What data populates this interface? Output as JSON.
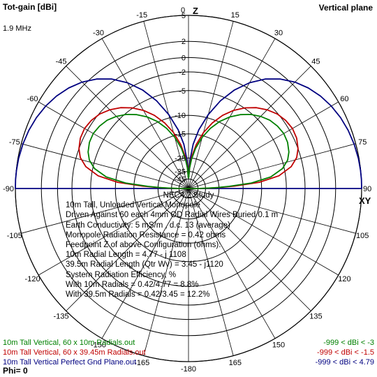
{
  "header": {
    "left_title": "Tot-gain [dBi]",
    "right_title": "Vertical plane",
    "frequency": "1.9 MHz",
    "axis_top": "Z",
    "axis_right": "XY",
    "phi": "Phi= 0"
  },
  "chart_data": {
    "type": "polar",
    "angle_labels": [
      {
        "text": "0",
        "deg": 0
      },
      {
        "text": "15",
        "deg": 15
      },
      {
        "text": "30",
        "deg": 30
      },
      {
        "text": "45",
        "deg": 45
      },
      {
        "text": "60",
        "deg": 60
      },
      {
        "text": "75",
        "deg": 75
      },
      {
        "text": "90",
        "deg": 90
      },
      {
        "text": "105",
        "deg": 105
      },
      {
        "text": "120",
        "deg": 120
      },
      {
        "text": "135",
        "deg": 135
      },
      {
        "text": "150",
        "deg": 150
      },
      {
        "text": "165",
        "deg": 165
      },
      {
        "text": "-180",
        "deg": 180
      },
      {
        "text": "-165",
        "deg": 195
      },
      {
        "text": "-150",
        "deg": 210
      },
      {
        "text": "-135",
        "deg": 225
      },
      {
        "text": "-120",
        "deg": 240
      },
      {
        "text": "-105",
        "deg": 255
      },
      {
        "text": "-90",
        "deg": 270
      },
      {
        "text": "-75",
        "deg": 285
      },
      {
        "text": "-60",
        "deg": 300
      },
      {
        "text": "-45",
        "deg": 315
      },
      {
        "text": "-30",
        "deg": 330
      },
      {
        "text": "-15",
        "deg": 345
      }
    ],
    "radial_ticks": [
      {
        "text": "5",
        "value": 5
      },
      {
        "text": "2",
        "value": 2
      },
      {
        "text": "0",
        "value": 0
      },
      {
        "text": "-2",
        "value": -2
      },
      {
        "text": "-5",
        "value": -5
      },
      {
        "text": "-10",
        "value": -10
      },
      {
        "text": "-15",
        "value": -15
      },
      {
        "text": "-25",
        "value": -25
      },
      {
        "text": "-35",
        "value": -35
      },
      {
        "text": "-45",
        "value": -45
      }
    ],
    "series": [
      {
        "name": "10m Tall Vertical Perfect Gnd Plane.out",
        "color": "#000080",
        "max_gain": 4.79,
        "elevation_deg": [
          0,
          3,
          6,
          10,
          15,
          20,
          25,
          30,
          35,
          40,
          45,
          50,
          55,
          60,
          65,
          70,
          75,
          80,
          84,
          87,
          89
        ],
        "gain_dbi": [
          4.79,
          4.79,
          4.77,
          4.73,
          4.62,
          4.47,
          4.25,
          3.95,
          3.56,
          3.04,
          2.38,
          1.5,
          0.35,
          -1.2,
          -3.2,
          -5.8,
          -9.2,
          -13.5,
          -18.5,
          -26,
          -40
        ]
      },
      {
        "name": "10m Tall Vertical, 60 x 39.45m Radials.out",
        "color": "#c00000",
        "max_gain": -1.5,
        "elevation_deg": [
          0,
          1,
          2,
          3,
          5,
          8,
          12,
          16,
          20,
          25,
          30,
          35,
          40,
          45,
          50,
          55,
          60,
          65,
          70,
          75,
          80,
          84,
          87,
          89
        ],
        "gain_dbi": [
          -45,
          -32,
          -24,
          -18,
          -10.5,
          -6.2,
          -3.8,
          -2.6,
          -2.0,
          -1.6,
          -1.5,
          -1.7,
          -2.1,
          -2.8,
          -3.7,
          -4.9,
          -6.4,
          -8.3,
          -10.8,
          -14,
          -18.5,
          -24,
          -31,
          -42
        ]
      },
      {
        "name": "10m Tall Vertical, 60 x 10m Radials.out",
        "color": "#008000",
        "max_gain": -3,
        "elevation_deg": [
          0,
          1,
          2,
          3,
          5,
          8,
          12,
          16,
          20,
          25,
          30,
          35,
          40,
          45,
          50,
          55,
          60,
          65,
          70,
          75,
          80,
          84,
          87,
          89
        ],
        "gain_dbi": [
          -45,
          -34,
          -26,
          -20,
          -12.5,
          -7.8,
          -5.3,
          -4.1,
          -3.5,
          -3.1,
          -3.0,
          -3.2,
          -3.6,
          -4.3,
          -5.2,
          -6.4,
          -7.9,
          -9.8,
          -12.3,
          -15.5,
          -20,
          -25.5,
          -32,
          -43
        ]
      }
    ]
  },
  "study": {
    "title": "NEC4.2 Study",
    "lines": [
      "10m Tall, Unloaded Vertical Monopole",
      "Driven Against 60 each 4mm OD Radial Wires Buried 0.1 m",
      "Earth Conductivity: 5 mS/m , d.c. 13 (average)",
      "Monopole Radiation Resistance = 0.42 ohms",
      "Feedpoint Z of above Configuration (ohms):",
      "10m Radial Length = 4.77 - j 1108",
      "39.5m Radial Length (Qtr Wv) = 3.45 - j1120",
      "System Radiation Efficiency, %",
      "With 10m Radials = 0.42/4.77 = 8.8%",
      "With 39.5m Radials = 0.42/3.45 = 12.2%"
    ]
  },
  "legend": {
    "items": [
      {
        "file": "10m Tall Vertical, 60 x 10m Radials.out",
        "range": "-999 < dBi < -3",
        "color": "#008000"
      },
      {
        "file": "10m Tall Vertical, 60 x 39.45m Radials.out",
        "range": "-999 < dBi < -1.5",
        "color": "#c00000"
      },
      {
        "file": "10m Tall Vertical Perfect Gnd Plane.out",
        "range": "-999 < dBi < 4.79",
        "color": "#000080"
      }
    ]
  }
}
